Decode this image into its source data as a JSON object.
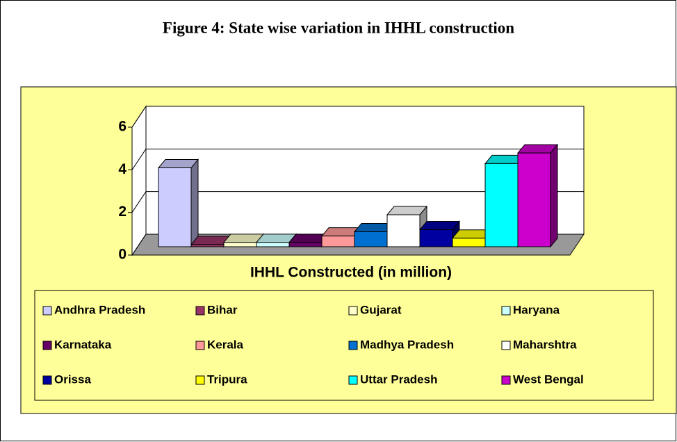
{
  "chart_data": {
    "type": "bar3d",
    "title": "Figure 4: State wise variation in IHHL construction",
    "x_label": "IHHL Constructed (in million)",
    "ylim": [
      0,
      6
    ],
    "yticks": [
      0,
      2,
      4,
      6
    ],
    "grid": true,
    "series": [
      {
        "name": "Andhra Pradesh",
        "color": "#ccccff",
        "values": [
          3.7
        ]
      },
      {
        "name": "Bihar",
        "color": "#993366",
        "values": [
          0.1
        ]
      },
      {
        "name": "Gujarat",
        "color": "#ffffcc",
        "values": [
          0.2
        ]
      },
      {
        "name": "Haryana",
        "color": "#ccffff",
        "values": [
          0.2
        ]
      },
      {
        "name": "Karnataka",
        "color": "#660066",
        "values": [
          0.2
        ]
      },
      {
        "name": "Kerala",
        "color": "#ff9999",
        "values": [
          0.5
        ]
      },
      {
        "name": "Madhya Pradesh",
        "color": "#0070d0",
        "values": [
          0.7
        ]
      },
      {
        "name": "Maharshtra",
        "color": "#ffffff",
        "values": [
          1.5
        ]
      },
      {
        "name": "Orissa",
        "color": "#0000a0",
        "values": [
          0.8
        ]
      },
      {
        "name": "Tripura",
        "color": "#ffff00",
        "values": [
          0.4
        ]
      },
      {
        "name": "Uttar Pradesh",
        "color": "#00ffff",
        "values": [
          3.9
        ]
      },
      {
        "name": "West Bengal",
        "color": "#cc00cc",
        "values": [
          4.4
        ]
      }
    ]
  }
}
